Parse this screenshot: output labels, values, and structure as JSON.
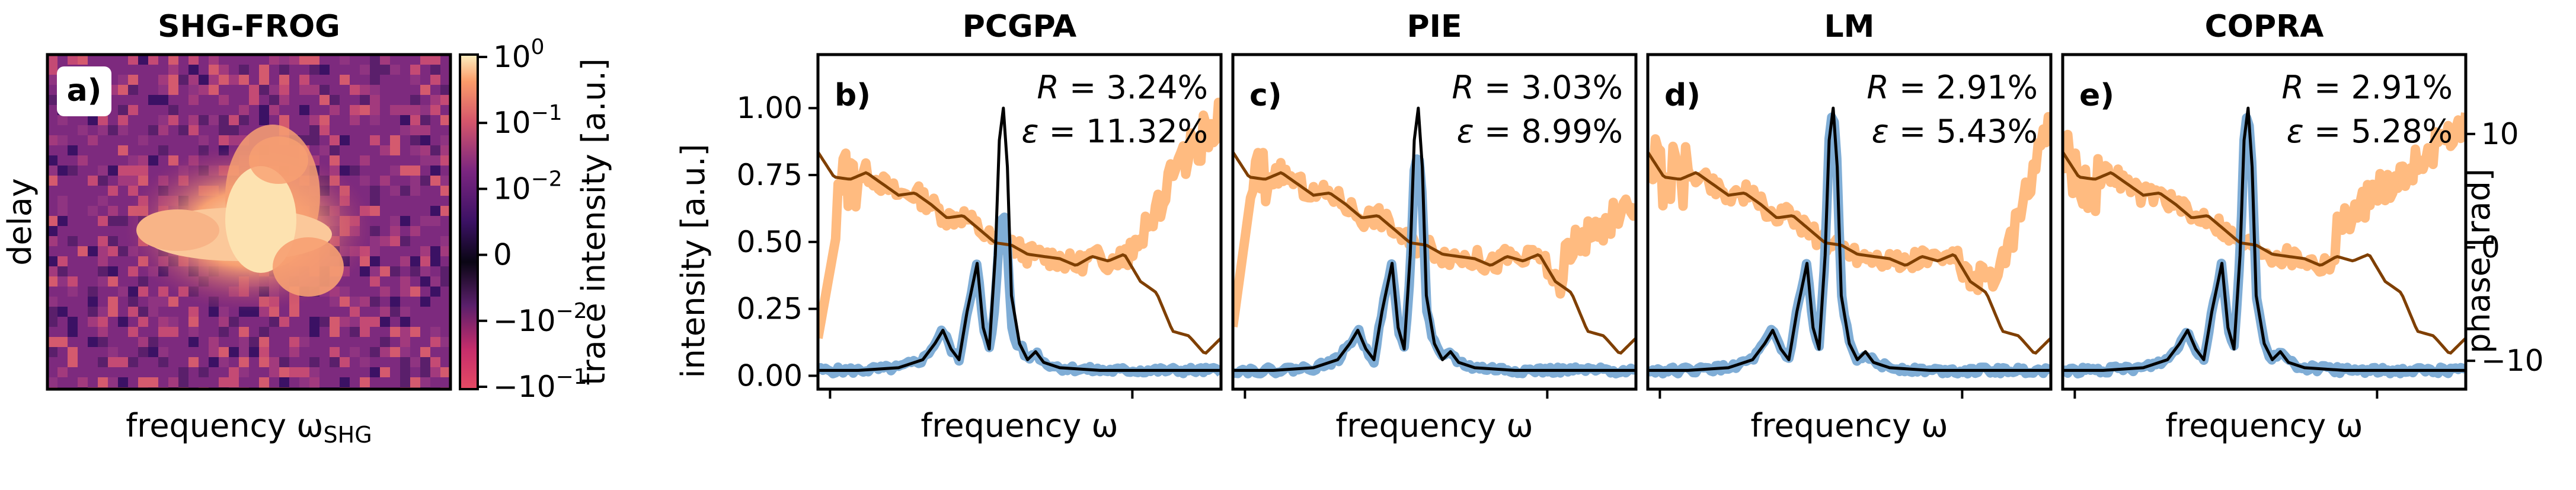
{
  "chart_data": [
    {
      "type": "heatmap",
      "title": "SHG-FROG",
      "panel_label": "a)",
      "xlabel": "frequency ω",
      "xlabel_sub": "SHG",
      "ylabel": "delay",
      "colorbar": {
        "label": "trace intensity [a.u.]",
        "scale": "symlog",
        "range": [
          -0.1,
          1
        ],
        "ticks": [
          {
            "base": "10",
            "exp": "0",
            "value": 1
          },
          {
            "base": "10",
            "exp": "−1",
            "value": 0.1
          },
          {
            "base": "10",
            "exp": "−2",
            "value": 0.01
          },
          {
            "plain": "0",
            "value": 0
          },
          {
            "base": "−10",
            "exp": "−2",
            "value": -0.01
          },
          {
            "base": "−10",
            "exp": "−1",
            "value": -0.1
          }
        ]
      }
    },
    {
      "type": "line",
      "panels": [
        {
          "title": "PCGPA",
          "label": "b)",
          "R": "3.24%",
          "eps": "11.32%",
          "spectrum_scale": 0.62,
          "phase_variant": 0
        },
        {
          "title": "PIE",
          "label": "c)",
          "R": "3.03%",
          "eps": "8.99%",
          "spectrum_scale": 0.86,
          "phase_variant": 1
        },
        {
          "title": "LM",
          "label": "d)",
          "R": "2.91%",
          "eps": "5.43%",
          "spectrum_scale": 1.0,
          "phase_variant": 2
        },
        {
          "title": "COPRA",
          "label": "e)",
          "R": "2.91%",
          "eps": "5.28%",
          "spectrum_scale": 1.0,
          "phase_variant": 3
        }
      ],
      "xlabel": "frequency ω",
      "ylabel_left": "intensity [a.u.]",
      "ylabel_right": "phase [rad]",
      "ylim_left": [
        -0.05,
        1.2
      ],
      "yticks_left": [
        "0.00",
        "0.25",
        "0.50",
        "0.75",
        "1.00"
      ],
      "ylim_right": [
        -12.5,
        17
      ],
      "yticks_right": [
        "−10",
        "0",
        "10"
      ],
      "series": [
        {
          "name": "retrieved spectral intensity",
          "color": "#1f77b4"
        },
        {
          "name": "retrieved spectral phase",
          "color": "#ff7f0e"
        },
        {
          "name": "true spectral intensity",
          "color": "#000000"
        },
        {
          "name": "true spectral phase",
          "color": "#7f3f00"
        }
      ],
      "true_intensity": {
        "x": [
          0.0,
          0.1,
          0.2,
          0.26,
          0.29,
          0.31,
          0.33,
          0.35,
          0.37,
          0.395,
          0.41,
          0.425,
          0.44,
          0.45,
          0.46,
          0.47,
          0.48,
          0.5,
          0.52,
          0.54,
          0.56,
          0.6,
          0.7,
          1.0
        ],
        "y": [
          0.02,
          0.02,
          0.03,
          0.06,
          0.12,
          0.17,
          0.1,
          0.06,
          0.24,
          0.42,
          0.18,
          0.1,
          0.45,
          0.88,
          1.0,
          0.78,
          0.3,
          0.12,
          0.06,
          0.09,
          0.05,
          0.03,
          0.02,
          0.02
        ]
      },
      "true_phase": {
        "x": [
          0.0,
          0.04,
          0.08,
          0.12,
          0.16,
          0.2,
          0.24,
          0.28,
          0.32,
          0.36,
          0.4,
          0.44,
          0.48,
          0.52,
          0.56,
          0.6,
          0.64,
          0.68,
          0.72,
          0.76,
          0.8,
          0.84,
          0.88,
          0.92,
          0.96,
          1.0
        ],
        "y": [
          8.4,
          6.2,
          6.0,
          6.6,
          5.6,
          4.6,
          4.8,
          3.8,
          2.6,
          2.8,
          1.6,
          0.4,
          0.2,
          -0.6,
          -0.8,
          -1.0,
          -1.6,
          -0.8,
          -1.2,
          -0.6,
          -3.0,
          -4.0,
          -7.4,
          -7.8,
          -9.4,
          -8.0
        ]
      }
    }
  ]
}
